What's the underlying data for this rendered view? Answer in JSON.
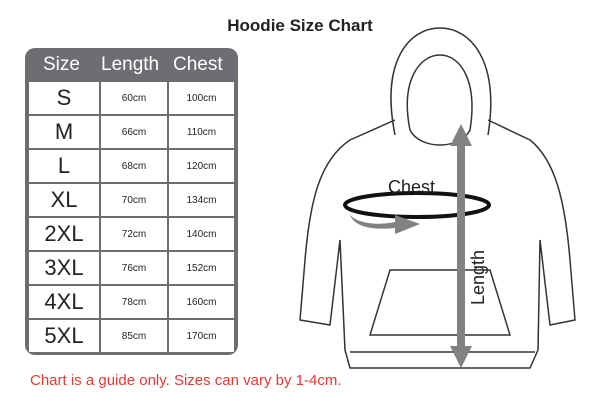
{
  "title": "Hoodie Size Chart",
  "table": {
    "headers": [
      "Size",
      "Length",
      "Chest"
    ],
    "rows": [
      [
        "S",
        "60cm",
        "100cm"
      ],
      [
        "M",
        "66cm",
        "110cm"
      ],
      [
        "L",
        "68cm",
        "120cm"
      ],
      [
        "XL",
        "70cm",
        "134cm"
      ],
      [
        "2XL",
        "72cm",
        "140cm"
      ],
      [
        "3XL",
        "76cm",
        "152cm"
      ],
      [
        "4XL",
        "78cm",
        "160cm"
      ],
      [
        "5XL",
        "85cm",
        "170cm"
      ]
    ]
  },
  "diagram": {
    "chest_label": "Chest",
    "length_label": "Length"
  },
  "note": "Chart is a guide only. Sizes can vary by 1-4cm.",
  "colors": {
    "table": "#6d6e71",
    "note": "#e53935",
    "arrow": "#808285"
  }
}
